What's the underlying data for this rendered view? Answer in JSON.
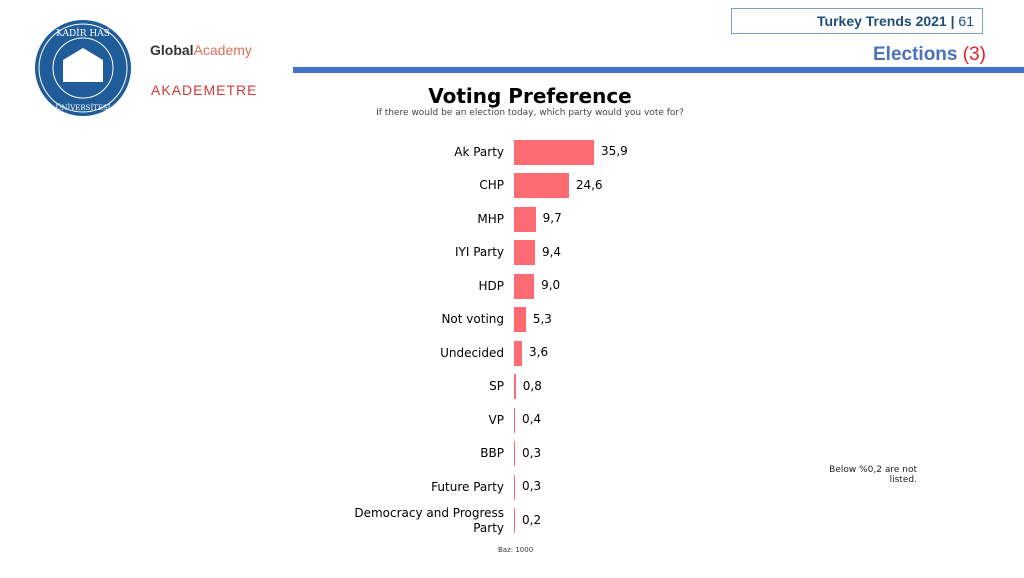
{
  "header": {
    "report": "Turkey Trends 2021",
    "separator": "|",
    "page": "61",
    "section": "Elections",
    "section_num": "(3)"
  },
  "logos": {
    "university": "KADİR HAS ÜNİVERSİTESİ 1997",
    "global_academy": "Global Academy",
    "akademetre": "AKADEMETRE"
  },
  "colors": {
    "bar": "#ff6b72",
    "accent": "#4472c4",
    "section_num": "#e8202a"
  },
  "chart_data": {
    "type": "bar",
    "orientation": "horizontal",
    "title": "Voting Preference",
    "subtitle": "If there would be an election today, which party would you vote for?",
    "categories": [
      "Ak Party",
      "CHP",
      "MHP",
      "IYI Party",
      "HDP",
      "Not voting",
      "Undecided",
      "SP",
      "VP",
      "BBP",
      "Future Party",
      "Democracy and Progress Party"
    ],
    "values": [
      35.9,
      24.6,
      9.7,
      9.4,
      9.0,
      5.3,
      3.6,
      0.8,
      0.4,
      0.3,
      0.3,
      0.2
    ],
    "value_labels": [
      "35,9",
      "24,6",
      "9,7",
      "9,4",
      "9,0",
      "5,3",
      "3,6",
      "0,8",
      "0,4",
      "0,3",
      "0,3",
      "0,2"
    ],
    "note": "Below %0,2 are not listed.",
    "base": "Baz: 1000"
  }
}
